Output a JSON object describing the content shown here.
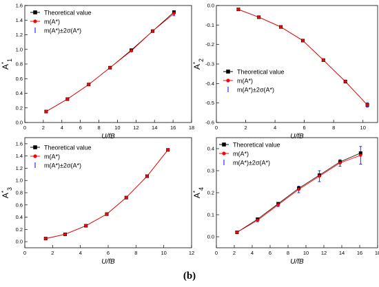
{
  "caption": "(b)",
  "legend_labels": {
    "theoretical": "Theoretical value",
    "mean": "m(A*)",
    "band": "m(A*)±2σ(A*)"
  },
  "colors": {
    "theoretical": "#000000",
    "mean": "#ff0000",
    "errorbar": "#0000ff",
    "frame": "#000000"
  },
  "chart_data": [
    {
      "type": "line",
      "ylabel": "A*1",
      "xlabel": "U/fB",
      "xlim": [
        0,
        18
      ],
      "ylim": [
        0,
        1.6
      ],
      "x_ticks": [
        "0",
        "2",
        "4",
        "6",
        "8",
        "10",
        "12",
        "14",
        "16",
        "18"
      ],
      "y_ticks": [
        "0.0",
        "0.2",
        "0.4",
        "0.6",
        "0.8",
        "1.0",
        "1.2",
        "1.4",
        "1.6"
      ],
      "legend_position": "top-left",
      "series": [
        {
          "name": "Theoretical value",
          "marker": "square",
          "x": [
            2.3,
            4.6,
            6.9,
            9.2,
            11.5,
            13.8,
            16.1
          ],
          "y": [
            0.15,
            0.32,
            0.52,
            0.75,
            0.99,
            1.25,
            1.51
          ]
        },
        {
          "name": "m(A1*)",
          "marker": "circle",
          "x": [
            2.3,
            4.6,
            6.9,
            9.2,
            11.5,
            13.8,
            16.1
          ],
          "y": [
            0.15,
            0.32,
            0.52,
            0.75,
            0.98,
            1.25,
            1.49
          ]
        }
      ],
      "error_half_width": [
        0.005,
        0.006,
        0.008,
        0.01,
        0.012,
        0.015,
        0.03
      ]
    },
    {
      "type": "line",
      "ylabel": "A*2",
      "xlabel": "U/fB",
      "xlim": [
        0,
        11
      ],
      "ylim": [
        -0.6,
        0.0
      ],
      "x_ticks": [
        "0",
        "2",
        "4",
        "6",
        "8",
        "10"
      ],
      "y_ticks": [
        "0.0",
        "-0.1",
        "-0.2",
        "-0.3",
        "-0.4",
        "-0.5",
        "-0.6"
      ],
      "legend_position": "bottom-left",
      "series": [
        {
          "name": "Theoretical value",
          "marker": "square",
          "x": [
            1.5,
            2.9,
            4.4,
            5.9,
            7.3,
            8.8,
            10.3
          ],
          "y": [
            -0.02,
            -0.06,
            -0.11,
            -0.18,
            -0.28,
            -0.39,
            -0.51
          ]
        },
        {
          "name": "m(A2*)",
          "marker": "circle",
          "x": [
            1.5,
            2.9,
            4.4,
            5.9,
            7.3,
            8.8,
            10.3
          ],
          "y": [
            -0.02,
            -0.06,
            -0.11,
            -0.18,
            -0.28,
            -0.39,
            -0.51
          ]
        }
      ],
      "error_half_width": [
        0.002,
        0.003,
        0.004,
        0.005,
        0.006,
        0.008,
        0.012
      ]
    },
    {
      "type": "line",
      "ylabel": "A*3",
      "xlabel": "U/fB",
      "xlim": [
        0,
        12
      ],
      "ylim": [
        -0.1,
        1.7
      ],
      "x_ticks": [
        "0",
        "2",
        "4",
        "6",
        "8",
        "10",
        "12"
      ],
      "y_ticks": [
        "0.0",
        "0.2",
        "0.4",
        "0.6",
        "0.8",
        "1.0",
        "1.2",
        "1.4",
        "1.6"
      ],
      "legend_position": "top-left",
      "series": [
        {
          "name": "Theoretical value",
          "marker": "square",
          "x": [
            1.5,
            2.9,
            4.4,
            5.9,
            7.3,
            8.8,
            10.3
          ],
          "y": [
            0.05,
            0.12,
            0.26,
            0.45,
            0.72,
            1.07,
            1.5
          ]
        },
        {
          "name": "m(A3*)",
          "marker": "circle",
          "x": [
            1.5,
            2.9,
            4.4,
            5.9,
            7.3,
            8.8,
            10.3
          ],
          "y": [
            0.05,
            0.12,
            0.26,
            0.45,
            0.72,
            1.07,
            1.5
          ]
        }
      ],
      "error_half_width": [
        0.004,
        0.005,
        0.006,
        0.007,
        0.008,
        0.01,
        0.012
      ]
    },
    {
      "type": "line",
      "ylabel": "A*4",
      "xlabel": "U/fB",
      "xlim": [
        0,
        18
      ],
      "ylim": [
        -0.05,
        0.45
      ],
      "x_ticks": [
        "0",
        "2",
        "4",
        "6",
        "8",
        "10",
        "12",
        "14",
        "16",
        "18"
      ],
      "y_ticks": [
        "0.0",
        "0.1",
        "0.2",
        "0.3",
        "0.4"
      ],
      "legend_position": "top-left",
      "series": [
        {
          "name": "Theoretical value",
          "marker": "square",
          "x": [
            2.3,
            4.6,
            6.9,
            9.2,
            11.5,
            13.8,
            16.1
          ],
          "y": [
            0.02,
            0.08,
            0.15,
            0.22,
            0.28,
            0.34,
            0.38
          ]
        },
        {
          "name": "m(A4*)",
          "marker": "circle",
          "x": [
            2.3,
            4.6,
            6.9,
            9.2,
            11.5,
            13.8,
            16.1
          ],
          "y": [
            0.02,
            0.075,
            0.145,
            0.215,
            0.275,
            0.335,
            0.37
          ]
        }
      ],
      "error_half_width": [
        0.003,
        0.007,
        0.008,
        0.015,
        0.025,
        0.015,
        0.04
      ]
    }
  ]
}
